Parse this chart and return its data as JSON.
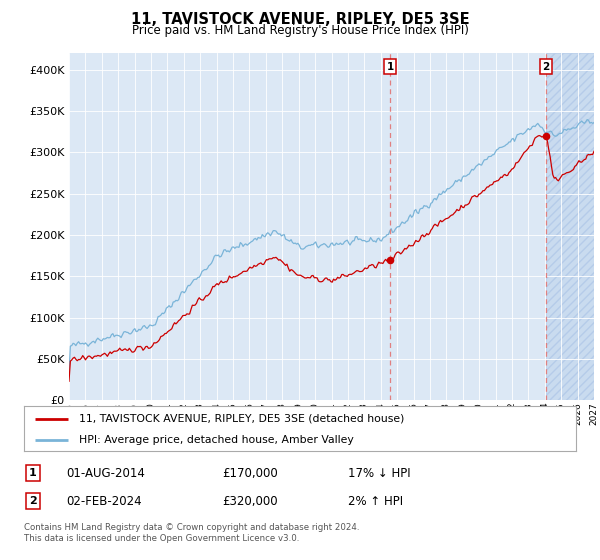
{
  "title": "11, TAVISTOCK AVENUE, RIPLEY, DE5 3SE",
  "subtitle": "Price paid vs. HM Land Registry's House Price Index (HPI)",
  "legend_line1": "11, TAVISTOCK AVENUE, RIPLEY, DE5 3SE (detached house)",
  "legend_line2": "HPI: Average price, detached house, Amber Valley",
  "marker1_label": "1",
  "marker1_date": "01-AUG-2014",
  "marker1_price": "£170,000",
  "marker1_hpi": "17% ↓ HPI",
  "marker2_label": "2",
  "marker2_date": "02-FEB-2024",
  "marker2_price": "£320,000",
  "marker2_hpi": "2% ↑ HPI",
  "footnote1": "Contains HM Land Registry data © Crown copyright and database right 2024.",
  "footnote2": "This data is licensed under the Open Government Licence v3.0.",
  "hpi_color": "#7ab4d8",
  "price_color": "#cc0000",
  "bg_chart": "#dce8f5",
  "vline_color": "#e08080",
  "grid_color": "#ffffff",
  "ylim": [
    0,
    420000
  ],
  "yticks": [
    0,
    50000,
    100000,
    150000,
    200000,
    250000,
    300000,
    350000,
    400000
  ],
  "xstart_year": 1995,
  "xend_year": 2027,
  "marker1_year": 2014.58,
  "marker1_value": 170000,
  "marker2_year": 2024.08,
  "marker2_value": 320000
}
